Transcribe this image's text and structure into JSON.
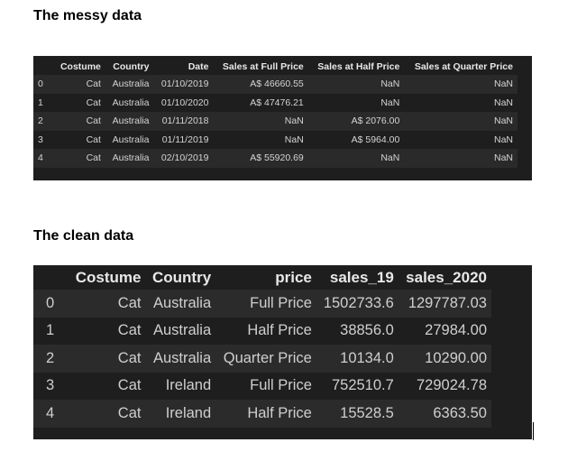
{
  "messy": {
    "heading": "The messy data",
    "columns": [
      "",
      "Costume",
      "Country",
      "Date",
      "Sales at Full Price",
      "Sales at Half Price",
      "Sales at Quarter Price"
    ],
    "rows": [
      [
        "0",
        "Cat",
        "Australia",
        "01/10/2019",
        "A$ 46660.55",
        "NaN",
        "NaN"
      ],
      [
        "1",
        "Cat",
        "Australia",
        "01/10/2020",
        "A$ 47476.21",
        "NaN",
        "NaN"
      ],
      [
        "2",
        "Cat",
        "Australia",
        "01/11/2018",
        "NaN",
        "A$ 2076.00",
        "NaN"
      ],
      [
        "3",
        "Cat",
        "Australia",
        "01/11/2019",
        "NaN",
        "A$ 5964.00",
        "NaN"
      ],
      [
        "4",
        "Cat",
        "Australia",
        "02/10/2019",
        "A$ 55920.69",
        "NaN",
        "NaN"
      ]
    ]
  },
  "clean": {
    "heading": "The clean data",
    "columns": [
      "",
      "Costume",
      "Country",
      "price",
      "sales_19",
      "sales_2020"
    ],
    "rows": [
      [
        "0",
        "Cat",
        "Australia",
        "Full Price",
        "1502733.6",
        "1297787.03"
      ],
      [
        "1",
        "Cat",
        "Australia",
        "Half Price",
        "38856.0",
        "27984.00"
      ],
      [
        "2",
        "Cat",
        "Australia",
        "Quarter Price",
        "10134.0",
        "10290.00"
      ],
      [
        "3",
        "Cat",
        "Ireland",
        "Full Price",
        "752510.7",
        "729024.78"
      ],
      [
        "4",
        "Cat",
        "Ireland",
        "Half Price",
        "15528.5",
        "6363.50"
      ]
    ]
  },
  "colors": {
    "panel_bg": "#1e1e1e",
    "row_alt": "#2a2a2a",
    "text": "#d4d4d4"
  }
}
